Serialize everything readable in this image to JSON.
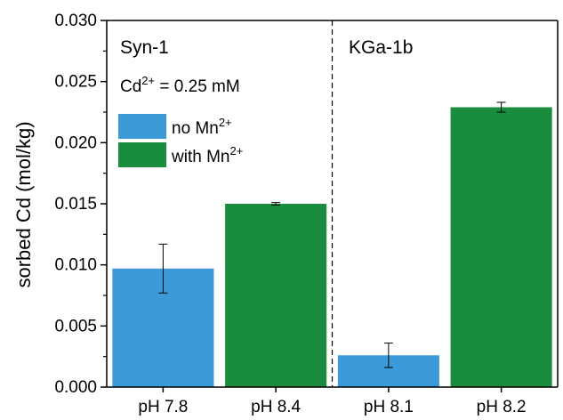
{
  "chart_data": {
    "type": "bar",
    "ylabel": "sorbed Cd (mol/kg)",
    "ylim": [
      0,
      0.03
    ],
    "yticks": [
      "0.000",
      "0.005",
      "0.010",
      "0.015",
      "0.020",
      "0.025",
      "0.030"
    ],
    "categories": [
      "pH 7.8",
      "pH 8.4",
      "pH 8.1",
      "pH 8.2"
    ],
    "values": [
      0.0097,
      0.015,
      0.0026,
      0.0229
    ],
    "errors": [
      0.002,
      0.0001,
      0.001,
      0.0004
    ],
    "bar_series": [
      "no Mn",
      "with Mn",
      "no Mn",
      "with Mn"
    ],
    "series": [
      {
        "name": "no Mn",
        "superscript": "2+",
        "color": "#3d9ad9"
      },
      {
        "name": "with Mn",
        "superscript": "2+",
        "color": "#1a8c3e"
      }
    ],
    "panels": [
      {
        "label": "Syn-1"
      },
      {
        "label": "KGa-1b"
      }
    ],
    "annotation": {
      "base": "Cd",
      "sup": "2+",
      "rest": " = 0.25 mM"
    },
    "legend_position": "top-left",
    "grid": false
  }
}
